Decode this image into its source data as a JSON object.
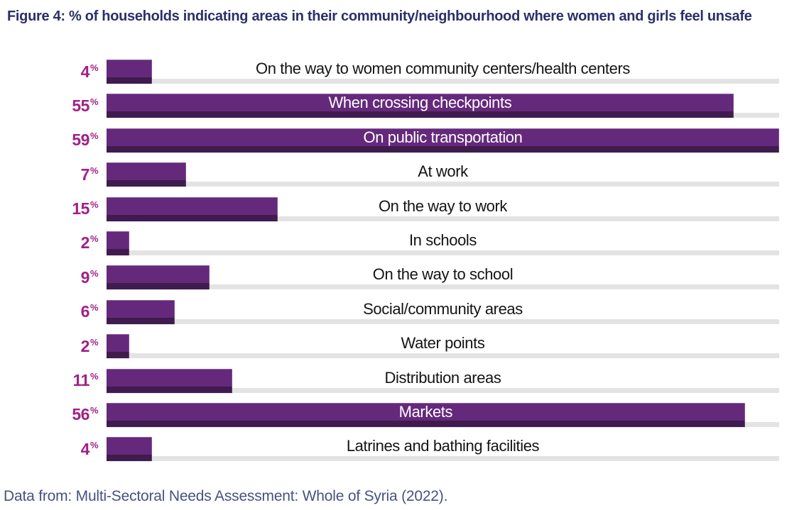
{
  "title": "Figure 4: % of households indicating areas in their community/neighbourhood where women and girls feel unsafe",
  "footer": "Data from: Multi-Sectoral Needs Assessment: Whole of Syria (2022).",
  "colors": {
    "title": "#2B2F6B",
    "bar": "#65297C",
    "bar_shadow": "#3F1B4E",
    "track": "#E3E3E3",
    "percent_label": "#A02088",
    "label_inside": "#FFFFFF",
    "label_outside": "#141414",
    "footer": "#475280"
  },
  "chart_data": {
    "type": "bar",
    "orientation": "horizontal",
    "title": "Figure 4: % of households indicating areas in their community/neighbourhood where women and girls feel unsafe",
    "xlabel": "",
    "ylabel": "",
    "unit": "%",
    "xlim": [
      0,
      59
    ],
    "grid": false,
    "legend": false,
    "categories": [
      "On the way to women community centers/health centers",
      "When crossing checkpoints",
      "On public transportation",
      "At work",
      "On the way to work",
      "In schools",
      "On the way to school",
      "Social/community areas",
      "Water points",
      "Distribution areas",
      "Markets",
      "Latrines and bathing facilities"
    ],
    "values": [
      4,
      55,
      59,
      7,
      15,
      2,
      9,
      6,
      2,
      11,
      56,
      4
    ],
    "label_placement": [
      "outside",
      "inside",
      "inside",
      "outside",
      "outside",
      "outside",
      "outside",
      "outside",
      "outside",
      "outside",
      "inside",
      "outside"
    ],
    "source_note": "Data from: Multi-Sectoral Needs Assessment: Whole of Syria (2022)."
  }
}
